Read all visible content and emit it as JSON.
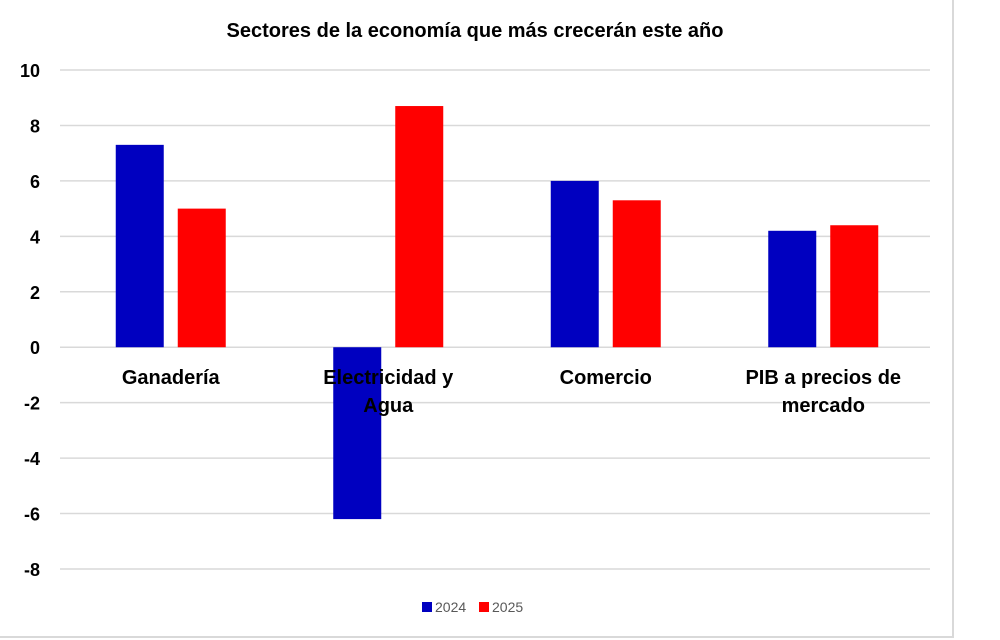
{
  "chart_data": {
    "type": "bar",
    "title": "Sectores de la economía que más crecerán este año",
    "categories": [
      [
        "Ganadería"
      ],
      [
        "Electricidad y",
        "Agua"
      ],
      [
        "Comercio"
      ],
      [
        "PIB a precios de",
        "mercado"
      ]
    ],
    "series": [
      {
        "name": "2024",
        "color": "#0000C0",
        "values": [
          7.3,
          -6.2,
          6.0,
          4.2
        ]
      },
      {
        "name": "2025",
        "color": "#FF0000",
        "values": [
          5.0,
          8.7,
          5.3,
          4.4
        ]
      }
    ],
    "ylim": [
      -8,
      10
    ],
    "yticks": [
      10,
      8,
      6,
      4,
      2,
      0,
      -2,
      -4,
      -6,
      -8
    ],
    "grid": true,
    "legend": "bottom"
  }
}
